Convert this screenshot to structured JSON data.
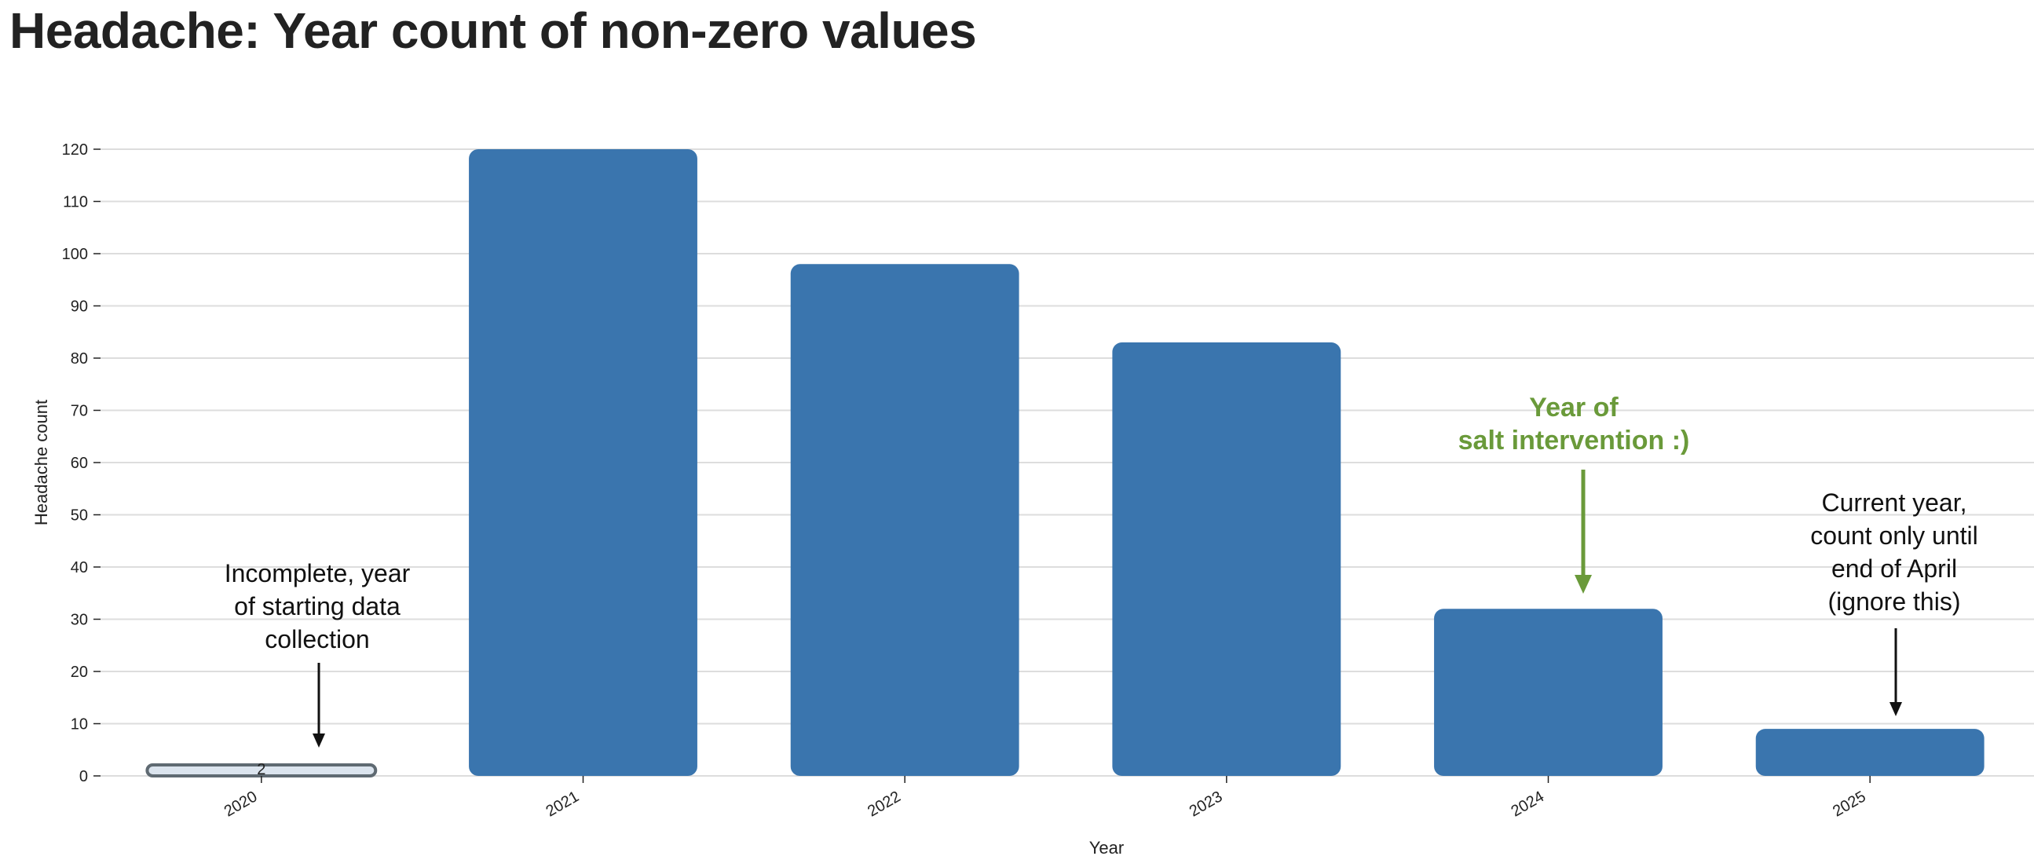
{
  "page": {
    "title": "Headache: Year count of non-zero values"
  },
  "chart_data": {
    "type": "bar",
    "categories": [
      "2020",
      "2021",
      "2022",
      "2023",
      "2024",
      "2025"
    ],
    "values": [
      2,
      120,
      98,
      83,
      32,
      9
    ],
    "value_labels": [
      "2",
      "",
      "",
      "",
      "",
      ""
    ],
    "xlabel": "Year",
    "ylabel": "Headache count",
    "ylim": [
      0,
      120
    ],
    "yticks": [
      0,
      10,
      20,
      30,
      40,
      50,
      60,
      70,
      80,
      90,
      100,
      110,
      120
    ],
    "grid": true,
    "colors": {
      "bar": "#3a75ae",
      "bar_incomplete_fill": "#dbe4ee",
      "bar_incomplete_stroke": "#5f6a72",
      "grid": "#dddddd",
      "axis_text": "#222222",
      "annotation": "#111111",
      "highlight": "#6a9a3a"
    },
    "annotations": [
      {
        "category": "2020",
        "lines": [
          "Incomplete, year",
          "of starting data",
          "collection"
        ],
        "style": "normal"
      },
      {
        "category": "2024",
        "lines": [
          "Year of",
          "salt intervention :)"
        ],
        "style": "highlight"
      },
      {
        "category": "2025",
        "lines": [
          "Current year,",
          "count only until",
          "end of April",
          "(ignore this)"
        ],
        "style": "normal"
      }
    ]
  }
}
